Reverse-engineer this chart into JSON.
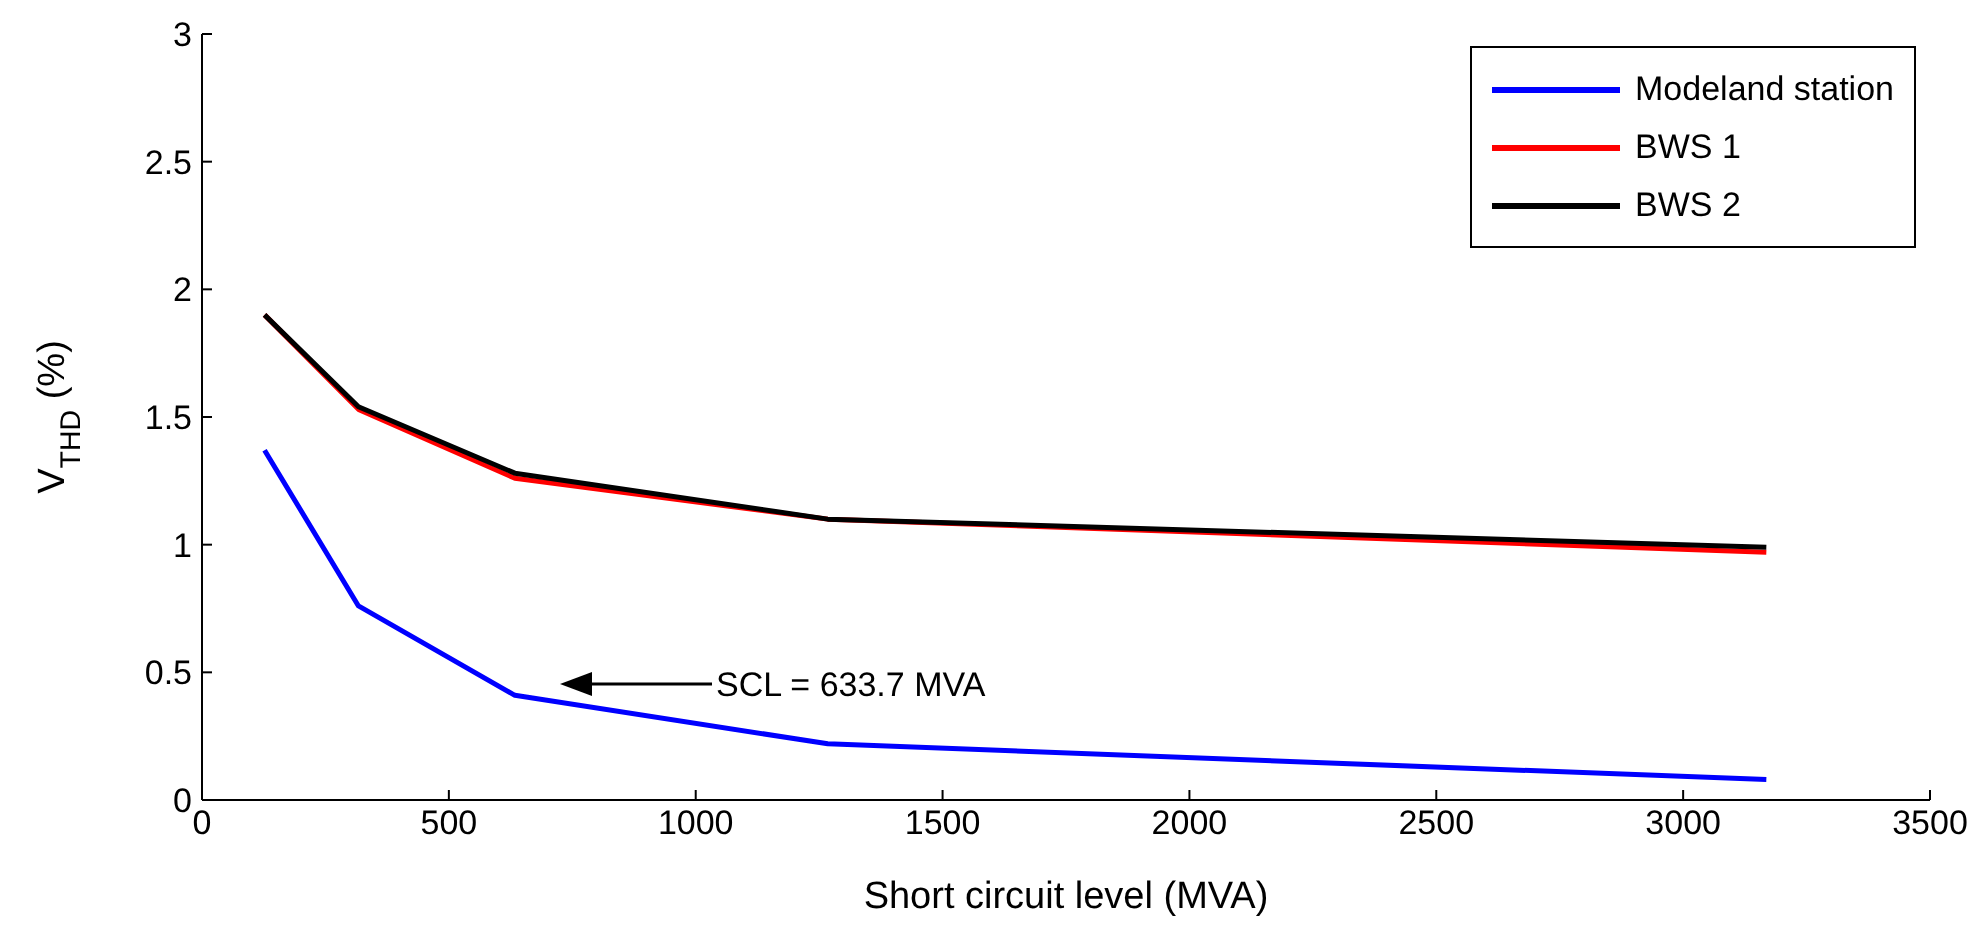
{
  "chart_data": {
    "type": "line",
    "xlabel": "Short circuit level (MVA)",
    "ylabel": "V$_{THD}$ (%)",
    "x": [
      126.7,
      316.9,
      633.7,
      1267.4,
      3168.5
    ],
    "series": [
      {
        "name": "Modeland station",
        "color": "#0000ff",
        "values": [
          1.37,
          0.76,
          0.41,
          0.22,
          0.08
        ]
      },
      {
        "name": "BWS 1",
        "color": "#ff0000",
        "values": [
          1.9,
          1.53,
          1.26,
          1.1,
          0.97
        ]
      },
      {
        "name": "BWS 2",
        "color": "#000000",
        "values": [
          1.9,
          1.54,
          1.28,
          1.1,
          0.99
        ]
      }
    ],
    "xlim": [
      0,
      3500
    ],
    "xticks": [
      0,
      500,
      1000,
      1500,
      2000,
      2500,
      3000,
      3500
    ],
    "ylim": [
      0,
      3
    ],
    "yticks": [
      0,
      0.5,
      1,
      1.5,
      2,
      2.5,
      3
    ],
    "legend": "top right",
    "marker": "none",
    "line_style": "solid",
    "annotations": [
      "SCL = 633.7 MVA"
    ]
  }
}
